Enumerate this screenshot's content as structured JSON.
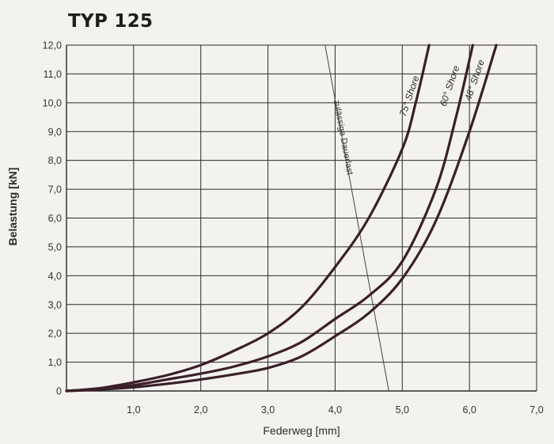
{
  "chart_data": {
    "type": "line",
    "title": "TYP 125",
    "xlabel": "Federweg [mm]",
    "ylabel": "Belastung [kN]",
    "xlim": [
      0,
      7.0
    ],
    "ylim": [
      0,
      12.0
    ],
    "grid": true,
    "x_ticks": [
      "1,0",
      "2,0",
      "3,0",
      "4,0",
      "5,0",
      "6,0",
      "7,0"
    ],
    "y_ticks": [
      "0",
      "1,0",
      "2,0",
      "3,0",
      "4,0",
      "5,0",
      "6,0",
      "7,0",
      "8,0",
      "9,0",
      "10,0",
      "11,0",
      "12,0"
    ],
    "series": [
      {
        "name": "75° Shore",
        "color": "#3a1f2a",
        "x": [
          0,
          0.5,
          1.0,
          1.5,
          2.0,
          2.5,
          3.0,
          3.5,
          4.0,
          4.5,
          5.0,
          5.2,
          5.4
        ],
        "y": [
          0,
          0.1,
          0.3,
          0.55,
          0.9,
          1.4,
          2.0,
          2.9,
          4.3,
          6.0,
          8.4,
          10.0,
          12.0
        ]
      },
      {
        "name": "60° Shore",
        "color": "#3a1f2a",
        "x": [
          0,
          0.5,
          1.0,
          1.5,
          2.0,
          2.5,
          3.0,
          3.5,
          4.0,
          4.5,
          5.0,
          5.5,
          5.8,
          6.05
        ],
        "y": [
          0,
          0.07,
          0.2,
          0.4,
          0.6,
          0.85,
          1.2,
          1.7,
          2.5,
          3.3,
          4.5,
          7.0,
          9.5,
          12.0
        ]
      },
      {
        "name": "48° Shore",
        "color": "#3a1f2a",
        "x": [
          0,
          0.5,
          1.0,
          1.5,
          2.0,
          2.5,
          3.0,
          3.5,
          4.0,
          4.5,
          5.0,
          5.5,
          6.0,
          6.4
        ],
        "y": [
          0,
          0.05,
          0.13,
          0.25,
          0.4,
          0.58,
          0.8,
          1.2,
          1.9,
          2.7,
          3.9,
          5.9,
          9.0,
          12.0
        ]
      }
    ],
    "annotations": [
      {
        "label": "zulässige Dauerlast",
        "type": "line",
        "x": [
          3.85,
          4.8
        ],
        "y": [
          12.0,
          0
        ]
      }
    ]
  }
}
